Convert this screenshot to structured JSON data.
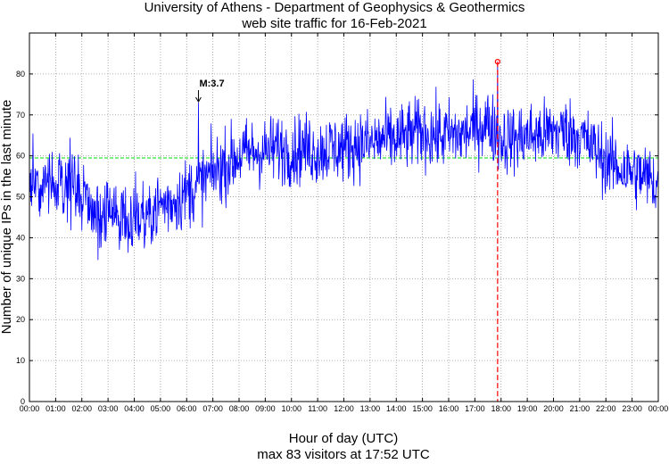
{
  "chart_data": {
    "type": "line",
    "title": "University of Athens - Department of Geophysics & Geothermics",
    "subtitle": "web site traffic for 16-Feb-2021",
    "xlabel": "Hour of day (UTC)",
    "xlabel_sub": "max 83 visitors at 17:52 UTC",
    "ylabel": "Number of unique IPs in the last minute",
    "xlim_hours": [
      0,
      24
    ],
    "ylim": [
      0,
      90
    ],
    "grid": true,
    "x_ticks": [
      "00:00",
      "01:00",
      "02:00",
      "03:00",
      "04:00",
      "05:00",
      "06:00",
      "07:00",
      "08:00",
      "09:00",
      "10:00",
      "11:00",
      "12:00",
      "13:00",
      "14:00",
      "15:00",
      "16:00",
      "17:00",
      "18:00",
      "19:00",
      "20:00",
      "21:00",
      "22:00",
      "23:00",
      "00:00"
    ],
    "y_ticks": [
      0,
      10,
      20,
      30,
      40,
      50,
      60,
      70,
      80
    ],
    "series": [
      {
        "values_hourly": [
          [
            0,
            55
          ],
          [
            0.5,
            53
          ],
          [
            1,
            52
          ],
          [
            1.5,
            54
          ],
          [
            2,
            50
          ],
          [
            2.5,
            46
          ],
          [
            3,
            45
          ],
          [
            3.5,
            46
          ],
          [
            4,
            45
          ],
          [
            4.5,
            46
          ],
          [
            5,
            48
          ],
          [
            5.5,
            49
          ],
          [
            6,
            51
          ],
          [
            6.5,
            53
          ],
          [
            7,
            56
          ],
          [
            7.5,
            58
          ],
          [
            8,
            60
          ],
          [
            8.5,
            61
          ],
          [
            9,
            61
          ],
          [
            9.5,
            62
          ],
          [
            10,
            61
          ],
          [
            10.5,
            62
          ],
          [
            11,
            61
          ],
          [
            11.5,
            62
          ],
          [
            12,
            62
          ],
          [
            12.5,
            63
          ],
          [
            13,
            63
          ],
          [
            13.5,
            64
          ],
          [
            14,
            64
          ],
          [
            14.5,
            65
          ],
          [
            15,
            66
          ],
          [
            15.5,
            65
          ],
          [
            16,
            65
          ],
          [
            16.5,
            65
          ],
          [
            17,
            67
          ],
          [
            17.5,
            68
          ],
          [
            18,
            64
          ],
          [
            18.5,
            64
          ],
          [
            19,
            65
          ],
          [
            19.5,
            65
          ],
          [
            20,
            66
          ],
          [
            20.5,
            66
          ],
          [
            21,
            65
          ],
          [
            21.5,
            62
          ],
          [
            22,
            59
          ],
          [
            22.5,
            57
          ],
          [
            23,
            56
          ],
          [
            23.5,
            55
          ],
          [
            24,
            53
          ]
        ],
        "color": "#0000ff"
      }
    ],
    "average_line": {
      "value": 59.5,
      "color": "#00dd00"
    },
    "max_point": {
      "time_hours": 17.867,
      "value": 83,
      "color": "#ff0000"
    },
    "annotation": {
      "label": "M:3.7",
      "time_hours": 6.45,
      "value": 73
    }
  }
}
